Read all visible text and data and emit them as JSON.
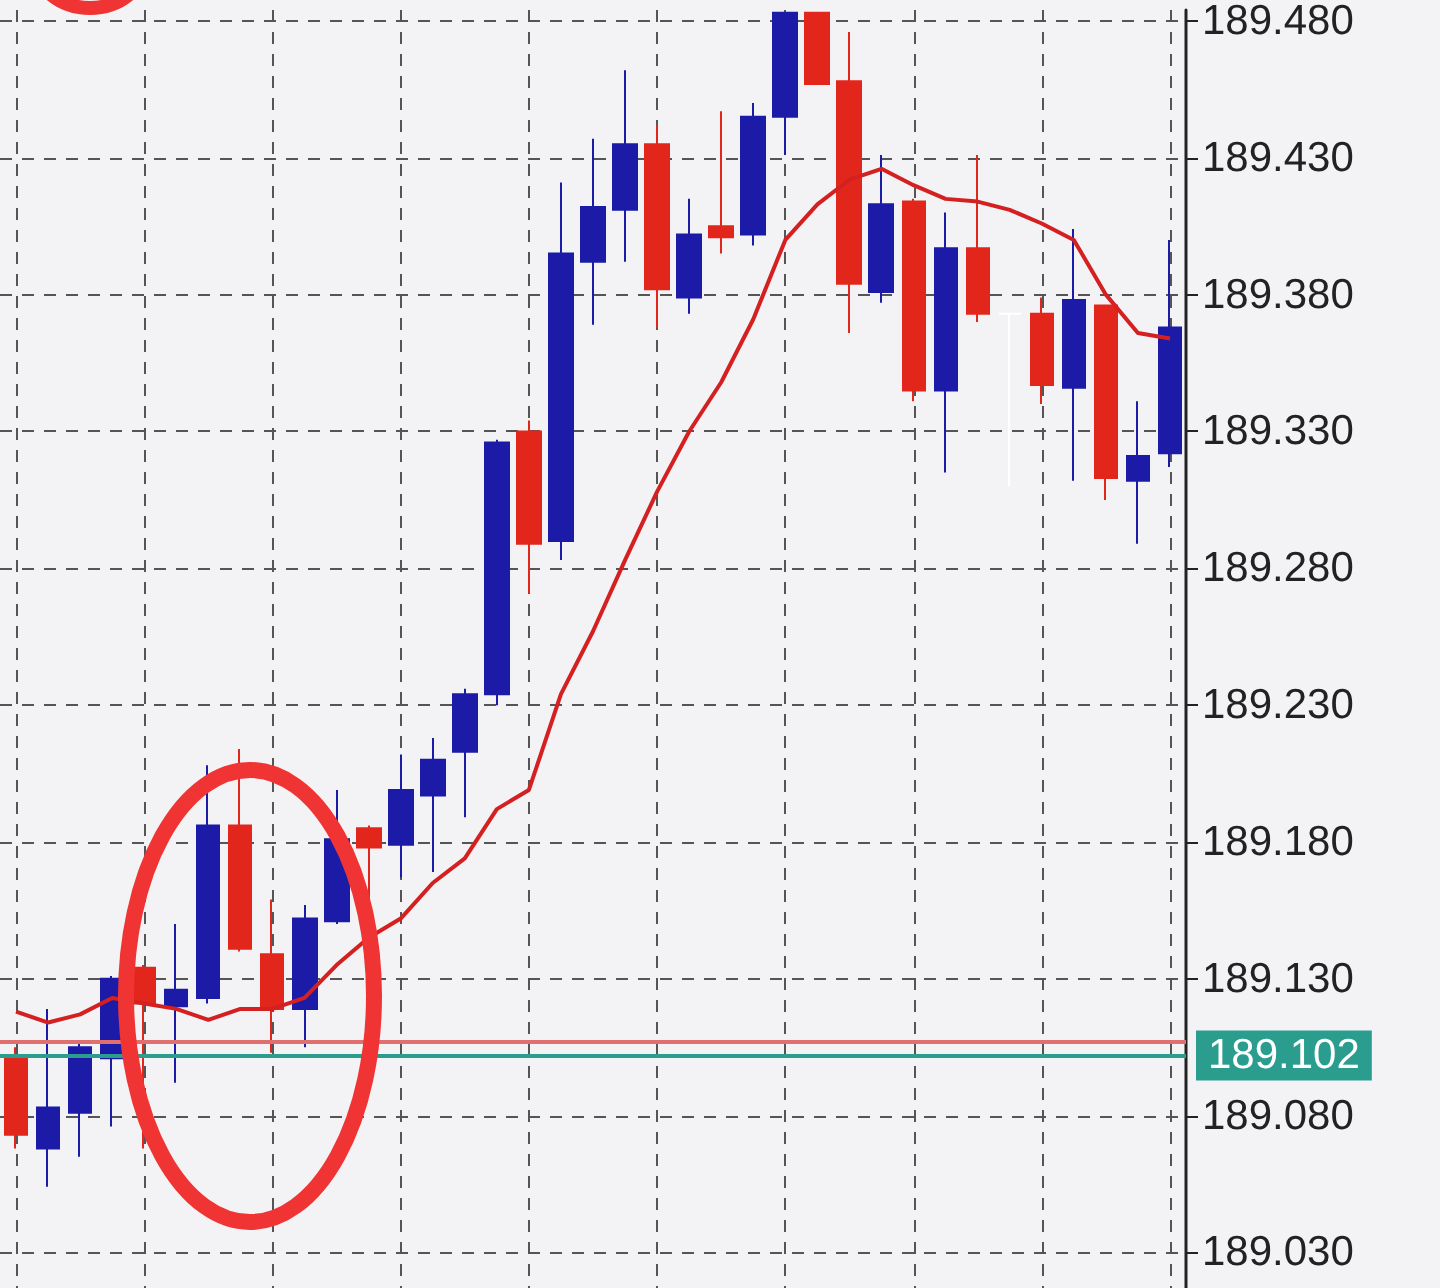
{
  "chart_data": {
    "type": "candlestick",
    "categories": [
      null,
      null,
      null,
      null,
      null,
      null,
      null,
      null,
      null,
      null,
      null,
      null,
      null,
      null,
      null,
      null,
      null,
      null,
      null,
      null,
      null,
      null,
      null,
      null,
      null,
      null,
      null,
      null,
      null,
      null,
      null,
      null,
      null,
      null,
      null,
      null,
      null
    ],
    "ohlc": [
      [
        189.102,
        189.105,
        189.068,
        189.073
      ],
      [
        189.068,
        189.119,
        189.054,
        189.083
      ],
      [
        189.081,
        189.107,
        189.065,
        189.105
      ],
      [
        189.101,
        189.131,
        189.076,
        189.13
      ],
      [
        189.134,
        189.135,
        189.068,
        189.121
      ],
      [
        189.12,
        189.15,
        189.092,
        189.126
      ],
      [
        189.123,
        189.208,
        189.121,
        189.186
      ],
      [
        189.186,
        189.214,
        189.14,
        189.141
      ],
      [
        189.139,
        189.159,
        189.103,
        189.119
      ],
      [
        189.119,
        189.157,
        189.105,
        189.152
      ],
      [
        189.151,
        189.199,
        189.15,
        189.181
      ],
      [
        189.185,
        189.186,
        189.152,
        189.178
      ],
      [
        189.179,
        189.212,
        189.167,
        189.199
      ],
      [
        189.197,
        189.218,
        189.169,
        189.21
      ],
      [
        189.213,
        189.236,
        189.189,
        189.234
      ],
      [
        189.234,
        189.327,
        189.23,
        189.326
      ],
      [
        189.33,
        189.334,
        189.271,
        189.289
      ],
      [
        189.29,
        189.421,
        189.283,
        189.395
      ],
      [
        189.392,
        189.437,
        189.369,
        189.412
      ],
      [
        189.411,
        189.462,
        189.392,
        189.435
      ],
      [
        189.435,
        189.442,
        189.368,
        189.382
      ],
      [
        189.379,
        189.415,
        189.373,
        189.402
      ],
      [
        189.405,
        189.447,
        189.395,
        189.401
      ],
      [
        189.402,
        189.45,
        189.398,
        189.445
      ],
      [
        189.445,
        189.483,
        189.431,
        189.483
      ],
      [
        189.483,
        189.483,
        189.457,
        189.457
      ],
      [
        189.458,
        189.476,
        189.366,
        189.384
      ],
      [
        189.381,
        189.431,
        189.377,
        189.413
      ],
      [
        189.414,
        189.415,
        189.341,
        189.345
      ],
      [
        189.345,
        189.41,
        189.315,
        189.397
      ],
      [
        189.397,
        189.431,
        189.37,
        189.373
      ],
      [
        189.373,
        189.373,
        189.31,
        189.373
      ],
      [
        189.373,
        189.379,
        189.34,
        189.347
      ],
      [
        189.346,
        189.404,
        189.312,
        189.378
      ],
      [
        189.376,
        189.376,
        189.305,
        189.313
      ],
      [
        189.312,
        189.341,
        189.289,
        189.321
      ],
      [
        189.322,
        189.4,
        189.317,
        189.368
      ]
    ],
    "colors": [
      "#e3261c",
      "#1b1ba8",
      "#1b1ba8",
      "#1b1ba8",
      "#e3261c",
      "#1b1ba8",
      "#1b1ba8",
      "#e3261c",
      "#e3261c",
      "#1b1ba8",
      "#1b1ba8",
      "#e3261c",
      "#1b1ba8",
      "#1b1ba8",
      "#1b1ba8",
      "#1b1ba8",
      "#e3261c",
      "#1b1ba8",
      "#1b1ba8",
      "#1b1ba8",
      "#e3261c",
      "#1b1ba8",
      "#e3261c",
      "#1b1ba8",
      "#1b1ba8",
      "#e3261c",
      "#e3261c",
      "#1b1ba8",
      "#e3261c",
      "#1b1ba8",
      "#e3261c",
      "#ffffff",
      "#e3261c",
      "#1b1ba8",
      "#e3261c",
      "#1b1ba8",
      "#1b1ba8"
    ],
    "series": [
      {
        "type": "line",
        "color": "#d42020",
        "values": [
          189.118,
          189.114,
          189.117,
          189.123,
          189.121,
          189.119,
          189.115,
          189.119,
          189.119,
          189.123,
          189.135,
          189.145,
          189.152,
          189.165,
          189.174,
          189.192,
          189.199,
          189.234,
          189.257,
          189.283,
          189.308,
          189.33,
          189.348,
          189.371,
          189.4,
          189.413,
          189.422,
          189.426,
          189.42,
          189.415,
          189.414,
          189.411,
          189.406,
          189.4,
          189.38,
          189.366,
          189.364
        ]
      }
    ],
    "ylim": [
      189.017,
      189.484
    ],
    "yticks": [
      {
        "value": 189.03,
        "label": "189.030"
      },
      {
        "value": 189.08,
        "label": "189.080"
      },
      {
        "value": 189.13,
        "label": "189.130"
      },
      {
        "value": 189.18,
        "label": "189.180"
      },
      {
        "value": 189.23,
        "label": "189.230"
      },
      {
        "value": 189.28,
        "label": "189.280"
      },
      {
        "value": 189.33,
        "label": "189.330"
      },
      {
        "value": 189.38,
        "label": "189.380"
      },
      {
        "value": 189.43,
        "label": "189.430"
      },
      {
        "value": 189.48,
        "label": "189.480"
      }
    ],
    "grid": true,
    "marker": "none",
    "ref_lines": [
      {
        "axis": "y",
        "value": 189.107,
        "color": "#e07070"
      },
      {
        "axis": "y",
        "value": 189.102,
        "label": "189.102",
        "color": "#2a9d8f"
      }
    ]
  }
}
